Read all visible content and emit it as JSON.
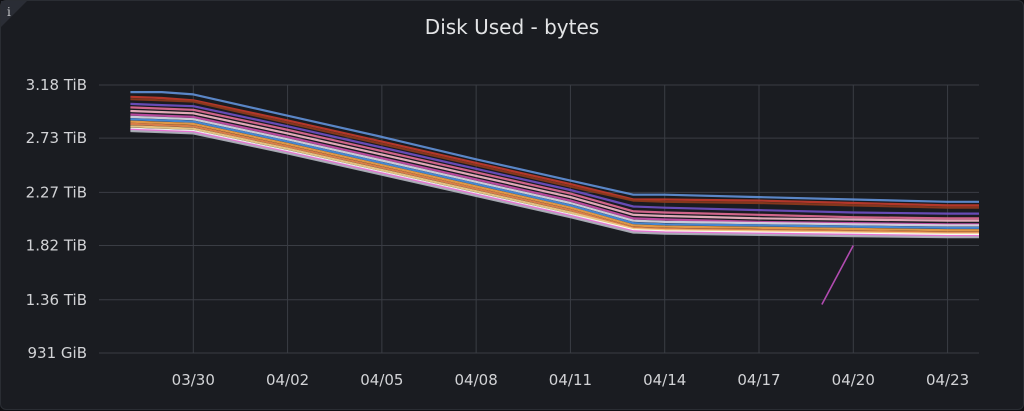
{
  "panel": {
    "title": "Disk Used - bytes",
    "info_icon": "info-icon",
    "info_glyph": "i"
  },
  "chart_data": {
    "type": "line",
    "title": "Disk Used - bytes",
    "xlabel": "",
    "ylabel": "",
    "x_ticks": [
      "03/30",
      "04/02",
      "04/05",
      "04/08",
      "04/11",
      "04/14",
      "04/17",
      "04/20",
      "04/23"
    ],
    "x_range": [
      "03/27",
      "04/24"
    ],
    "y_ticks": [
      "931 GiB",
      "1.36 TiB",
      "1.82 TiB",
      "2.27 TiB",
      "2.73 TiB",
      "3.18 TiB"
    ],
    "y_range_tib": [
      0.909,
      3.18
    ],
    "grid": true,
    "legend": "none",
    "x_dates": [
      "03/28",
      "03/29",
      "03/30",
      "04/02",
      "04/05",
      "04/08",
      "04/11",
      "04/13",
      "04/14",
      "04/17",
      "04/20",
      "04/23",
      "04/24"
    ],
    "series": [
      {
        "color": "#5f8fd6",
        "values": [
          3.12,
          3.12,
          3.1,
          2.92,
          2.74,
          2.55,
          2.37,
          2.25,
          2.25,
          2.23,
          2.21,
          2.19,
          2.19
        ]
      },
      {
        "color": "#c0392b",
        "values": [
          3.08,
          3.07,
          3.05,
          2.88,
          2.7,
          2.52,
          2.34,
          2.21,
          2.21,
          2.2,
          2.18,
          2.16,
          2.16
        ]
      },
      {
        "color": "#8e3a1c",
        "values": [
          3.06,
          3.05,
          3.04,
          2.86,
          2.68,
          2.5,
          2.32,
          2.2,
          2.19,
          2.18,
          2.16,
          2.14,
          2.14
        ]
      },
      {
        "color": "#6e4fc2",
        "values": [
          3.02,
          3.01,
          3.0,
          2.83,
          2.65,
          2.47,
          2.29,
          2.15,
          2.14,
          2.12,
          2.1,
          2.09,
          2.09
        ]
      },
      {
        "color": "#e06b94",
        "values": [
          2.99,
          2.98,
          2.97,
          2.8,
          2.62,
          2.44,
          2.26,
          2.11,
          2.1,
          2.08,
          2.06,
          2.05,
          2.05
        ]
      },
      {
        "color": "#f2b6c6",
        "values": [
          2.96,
          2.95,
          2.94,
          2.77,
          2.59,
          2.41,
          2.23,
          2.08,
          2.07,
          2.05,
          2.04,
          2.03,
          2.03
        ]
      },
      {
        "color": "#c64ea8",
        "values": [
          2.93,
          2.92,
          2.91,
          2.74,
          2.56,
          2.38,
          2.2,
          2.05,
          2.04,
          2.02,
          2.01,
          2.0,
          2.0
        ]
      },
      {
        "color": "#d9d9e6",
        "values": [
          2.91,
          2.9,
          2.89,
          2.72,
          2.54,
          2.36,
          2.18,
          2.03,
          2.02,
          2.01,
          2.0,
          1.99,
          1.99
        ]
      },
      {
        "color": "#4a8fe0",
        "values": [
          2.89,
          2.88,
          2.87,
          2.7,
          2.52,
          2.34,
          2.16,
          2.01,
          2.0,
          1.99,
          1.98,
          1.97,
          1.97
        ]
      },
      {
        "color": "#f0a24a",
        "values": [
          2.87,
          2.86,
          2.85,
          2.68,
          2.5,
          2.32,
          2.14,
          1.99,
          1.98,
          1.97,
          1.96,
          1.95,
          1.95
        ]
      },
      {
        "color": "#e8864e",
        "values": [
          2.85,
          2.84,
          2.83,
          2.66,
          2.48,
          2.3,
          2.12,
          1.97,
          1.96,
          1.95,
          1.94,
          1.93,
          1.93
        ]
      },
      {
        "color": "#f5d08a",
        "values": [
          2.83,
          2.82,
          2.81,
          2.64,
          2.46,
          2.28,
          2.1,
          1.96,
          1.95,
          1.94,
          1.93,
          1.92,
          1.92
        ]
      },
      {
        "color": "#ffffff",
        "values": [
          2.81,
          2.8,
          2.79,
          2.62,
          2.44,
          2.26,
          2.08,
          1.95,
          1.94,
          1.93,
          1.92,
          1.91,
          1.91
        ]
      },
      {
        "color": "#e86ad4",
        "values": [
          2.8,
          2.79,
          2.78,
          2.61,
          2.43,
          2.25,
          2.07,
          1.94,
          1.93,
          1.92,
          1.91,
          1.9,
          1.9
        ]
      },
      {
        "color": "#b0b4bd",
        "values": [
          2.79,
          2.78,
          2.77,
          2.6,
          2.42,
          2.24,
          2.06,
          1.93,
          1.92,
          1.91,
          1.9,
          1.89,
          1.89
        ]
      }
    ],
    "annotation_spike": {
      "color": "#b14bb0",
      "x": [
        "04/19",
        "04/20"
      ],
      "values": [
        1.32,
        1.82
      ]
    }
  }
}
